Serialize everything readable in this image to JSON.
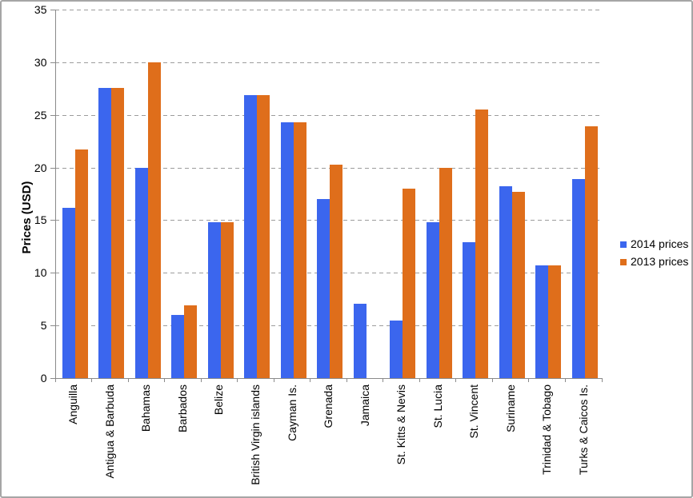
{
  "window": {
    "background_color": "#ffffff",
    "border_color": "#a6a6a6"
  },
  "chart_data": {
    "type": "bar",
    "title": "",
    "xlabel": "",
    "ylabel": "Prices (USD)",
    "ylim": [
      0,
      35
    ],
    "ytick_step": 5,
    "yticks": [
      0,
      5,
      10,
      15,
      20,
      25,
      30,
      35
    ],
    "grid": "horizontal-dashed",
    "gridline_color": "#9c9c9c",
    "axis_color": "#8a8a8a",
    "legend_position": "right",
    "categories": [
      "Anguilla",
      "Antigua & Barbuda",
      "Bahamas",
      "Barbados",
      "Belize",
      "British Virgin islands",
      "Cayman Is.",
      "Grenada",
      "Jamaica",
      "St. Kitts & Nevis",
      "St. Lucia",
      "St. Vincent",
      "Suriname",
      "Trinidad & Tobago",
      "Turks & Caicos Is."
    ],
    "series": [
      {
        "name": "2014 prices",
        "color": "#3b66ee",
        "values": [
          16.2,
          27.6,
          20.0,
          6.0,
          14.8,
          26.9,
          24.3,
          17.0,
          7.1,
          5.5,
          14.8,
          12.9,
          18.2,
          10.7,
          18.9
        ]
      },
      {
        "name": "2013 prices",
        "color": "#df6e1b",
        "values": [
          21.7,
          27.6,
          30.0,
          6.9,
          14.8,
          26.9,
          24.3,
          20.3,
          0,
          18.0,
          20.0,
          25.5,
          17.7,
          10.7,
          23.9
        ]
      }
    ]
  }
}
